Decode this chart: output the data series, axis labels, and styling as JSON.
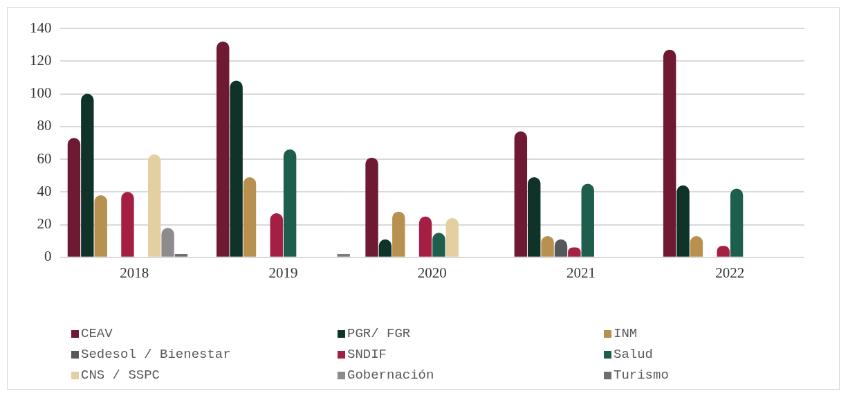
{
  "chart_data": {
    "type": "bar",
    "categories": [
      "2018",
      "2019",
      "2020",
      "2021",
      "2022"
    ],
    "series": [
      {
        "name": "CEAV",
        "color": "#6e1a33",
        "values": [
          73,
          132,
          61,
          77,
          127
        ]
      },
      {
        "name": "PGR/ FGR",
        "color": "#0f3329",
        "values": [
          100,
          108,
          11,
          49,
          44
        ]
      },
      {
        "name": "INM",
        "color": "#b8904f",
        "values": [
          38,
          49,
          28,
          13,
          13
        ]
      },
      {
        "name": "Sedesol / Bienestar",
        "color": "#55595b",
        "values": [
          0,
          0,
          0,
          11,
          0
        ]
      },
      {
        "name": "SNDIF",
        "color": "#a51f43",
        "values": [
          40,
          27,
          25,
          6,
          7
        ]
      },
      {
        "name": "Salud",
        "color": "#1e5e4c",
        "values": [
          0,
          66,
          15,
          45,
          42
        ]
      },
      {
        "name": "CNS / SSPC",
        "color": "#e3cfa0",
        "values": [
          63,
          0,
          24,
          0,
          0
        ]
      },
      {
        "name": "Gobernación",
        "color": "#8c8c8c",
        "values": [
          18,
          0,
          0,
          0,
          0
        ]
      },
      {
        "name": "Turismo",
        "color": "#6f6f6f",
        "values": [
          2,
          0,
          0,
          0,
          0
        ]
      },
      {
        "color": "#7b7b7b",
        "values": [
          0,
          2,
          0,
          0,
          0
        ]
      }
    ],
    "ylim": [
      0,
      140
    ],
    "yticks": [
      0,
      20,
      40,
      60,
      80,
      100,
      120,
      140
    ],
    "grid": "y",
    "legend": "bottom"
  }
}
